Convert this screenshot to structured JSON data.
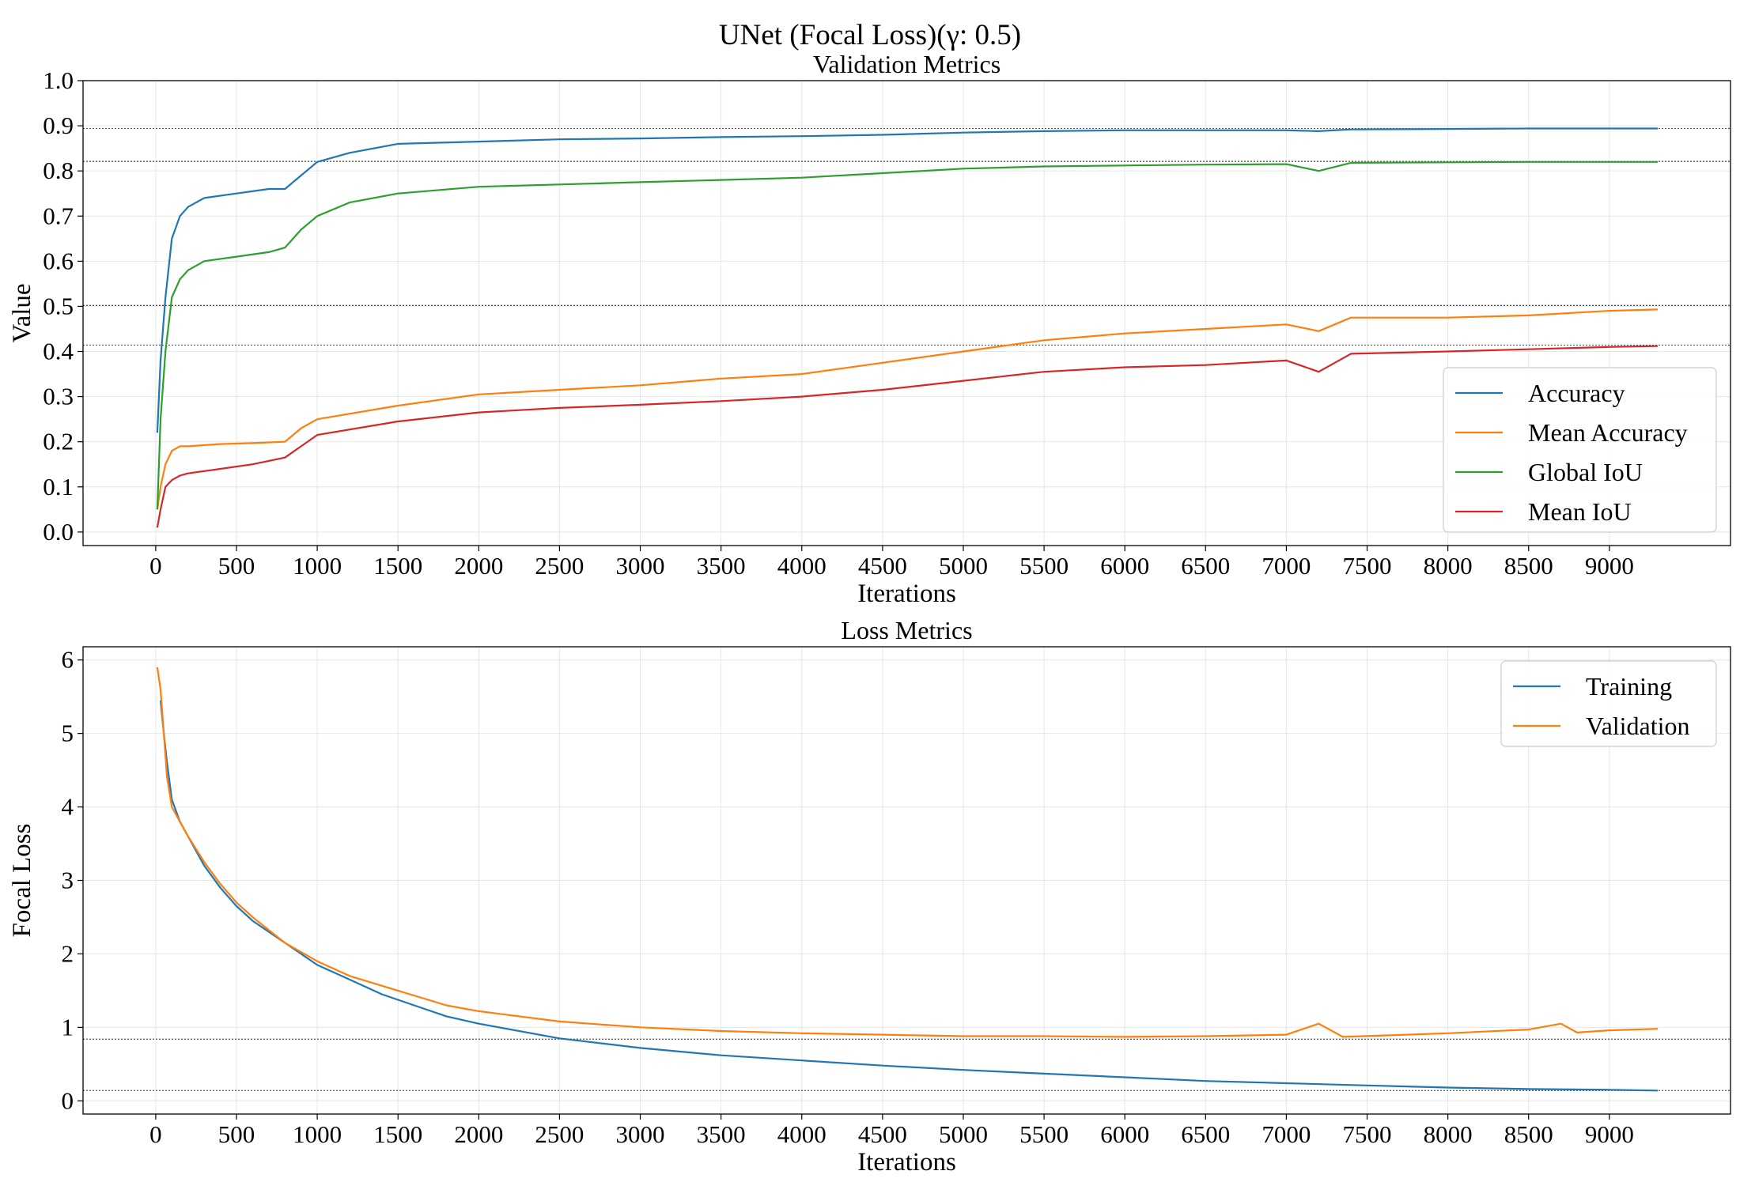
{
  "suptitle": "UNet (Focal Loss)(γ: 0.5)",
  "colors": {
    "blue": "#1f77b4",
    "orange": "#ff7f0e",
    "green": "#2ca02c",
    "red": "#d62728",
    "refline": "#555555"
  },
  "chart_data": [
    {
      "type": "line",
      "title": "Validation Metrics",
      "xlabel": "Iterations",
      "ylabel": "Value",
      "xlim": [
        -450,
        9750
      ],
      "ylim": [
        -0.03,
        1.0
      ],
      "xticks": [
        0,
        500,
        1000,
        1500,
        2000,
        2500,
        3000,
        3500,
        4000,
        4500,
        5000,
        5500,
        6000,
        6500,
        7000,
        7500,
        8000,
        8500,
        9000
      ],
      "yticks": [
        0.0,
        0.1,
        0.2,
        0.3,
        0.4,
        0.5,
        0.6,
        0.7,
        0.8,
        0.9,
        1.0
      ],
      "ytick_labels": [
        "0.0",
        "0.1",
        "0.2",
        "0.3",
        "0.4",
        "0.5",
        "0.6",
        "0.7",
        "0.8",
        "0.9",
        "1.0"
      ],
      "grid": true,
      "legend_position": "lower-right",
      "reference_lines": [
        0.894,
        0.821,
        0.502,
        0.414
      ],
      "series": [
        {
          "name": "Accuracy",
          "color": "#1f77b4",
          "x": [
            10,
            30,
            60,
            100,
            150,
            200,
            300,
            500,
            700,
            800,
            900,
            1000,
            1200,
            1500,
            2000,
            2500,
            3000,
            3500,
            4000,
            4500,
            5000,
            5500,
            6000,
            6500,
            7000,
            7200,
            7400,
            8000,
            8500,
            9000,
            9300
          ],
          "y": [
            0.22,
            0.38,
            0.52,
            0.65,
            0.7,
            0.72,
            0.74,
            0.75,
            0.76,
            0.76,
            0.79,
            0.82,
            0.84,
            0.86,
            0.865,
            0.87,
            0.872,
            0.875,
            0.877,
            0.88,
            0.885,
            0.888,
            0.89,
            0.89,
            0.89,
            0.888,
            0.892,
            0.893,
            0.894,
            0.894,
            0.894
          ]
        },
        {
          "name": "Mean Accuracy",
          "color": "#ff7f0e",
          "x": [
            10,
            30,
            60,
            100,
            150,
            200,
            400,
            600,
            800,
            900,
            1000,
            1500,
            2000,
            2500,
            3000,
            3500,
            4000,
            4500,
            5000,
            5500,
            6000,
            6500,
            7000,
            7200,
            7400,
            8000,
            8500,
            9000,
            9300
          ],
          "y": [
            0.05,
            0.1,
            0.15,
            0.18,
            0.19,
            0.19,
            0.195,
            0.197,
            0.2,
            0.23,
            0.25,
            0.28,
            0.305,
            0.315,
            0.325,
            0.34,
            0.35,
            0.375,
            0.4,
            0.425,
            0.44,
            0.45,
            0.46,
            0.445,
            0.475,
            0.475,
            0.48,
            0.49,
            0.493
          ]
        },
        {
          "name": "Global IoU",
          "color": "#2ca02c",
          "x": [
            10,
            30,
            60,
            100,
            150,
            200,
            300,
            500,
            700,
            800,
            900,
            1000,
            1200,
            1500,
            2000,
            2500,
            3000,
            3500,
            4000,
            4500,
            5000,
            5500,
            6000,
            6500,
            7000,
            7200,
            7400,
            8000,
            8500,
            9000,
            9300
          ],
          "y": [
            0.05,
            0.25,
            0.4,
            0.52,
            0.56,
            0.58,
            0.6,
            0.61,
            0.62,
            0.63,
            0.67,
            0.7,
            0.73,
            0.75,
            0.765,
            0.77,
            0.775,
            0.78,
            0.785,
            0.795,
            0.805,
            0.81,
            0.812,
            0.814,
            0.815,
            0.8,
            0.818,
            0.819,
            0.82,
            0.82,
            0.82
          ]
        },
        {
          "name": "Mean IoU",
          "color": "#d62728",
          "x": [
            10,
            30,
            60,
            100,
            150,
            200,
            400,
            600,
            800,
            900,
            1000,
            1500,
            2000,
            2500,
            3000,
            3500,
            4000,
            4500,
            5000,
            5500,
            6000,
            6500,
            7000,
            7200,
            7400,
            8000,
            8500,
            9000,
            9300
          ],
          "y": [
            0.01,
            0.05,
            0.1,
            0.115,
            0.125,
            0.13,
            0.14,
            0.15,
            0.165,
            0.19,
            0.215,
            0.245,
            0.265,
            0.275,
            0.282,
            0.29,
            0.3,
            0.315,
            0.335,
            0.355,
            0.365,
            0.37,
            0.38,
            0.355,
            0.395,
            0.4,
            0.405,
            0.41,
            0.412
          ]
        }
      ]
    },
    {
      "type": "line",
      "title": "Loss Metrics",
      "xlabel": "Iterations",
      "ylabel": "Focal Loss",
      "xlim": [
        -450,
        9750
      ],
      "ylim": [
        -0.18,
        6.18
      ],
      "xticks": [
        0,
        500,
        1000,
        1500,
        2000,
        2500,
        3000,
        3500,
        4000,
        4500,
        5000,
        5500,
        6000,
        6500,
        7000,
        7500,
        8000,
        8500,
        9000
      ],
      "yticks": [
        0,
        1,
        2,
        3,
        4,
        5,
        6
      ],
      "ytick_labels": [
        "0",
        "1",
        "2",
        "3",
        "4",
        "5",
        "6"
      ],
      "grid": true,
      "legend_position": "upper-right",
      "reference_lines": [
        0.84,
        0.14
      ],
      "series": [
        {
          "name": "Training",
          "color": "#1f77b4",
          "x": [
            30,
            50,
            70,
            100,
            150,
            200,
            300,
            400,
            500,
            600,
            700,
            800,
            900,
            1000,
            1200,
            1400,
            1600,
            1800,
            2000,
            2500,
            3000,
            3500,
            4000,
            4500,
            5000,
            5500,
            6000,
            6500,
            7000,
            7500,
            8000,
            8500,
            9000,
            9300
          ],
          "y": [
            5.45,
            5.0,
            4.6,
            4.1,
            3.8,
            3.6,
            3.2,
            2.9,
            2.65,
            2.45,
            2.3,
            2.15,
            2.0,
            1.85,
            1.65,
            1.45,
            1.3,
            1.15,
            1.05,
            0.85,
            0.72,
            0.62,
            0.55,
            0.48,
            0.42,
            0.37,
            0.32,
            0.27,
            0.24,
            0.21,
            0.18,
            0.16,
            0.15,
            0.14
          ]
        },
        {
          "name": "Validation",
          "color": "#ff7f0e",
          "x": [
            10,
            30,
            50,
            70,
            100,
            150,
            200,
            300,
            400,
            500,
            600,
            800,
            1000,
            1200,
            1500,
            1800,
            2000,
            2500,
            3000,
            3500,
            4000,
            4500,
            5000,
            5500,
            6000,
            6500,
            7000,
            7200,
            7350,
            8000,
            8500,
            8700,
            8800,
            9000,
            9300
          ],
          "y": [
            5.9,
            5.6,
            5.0,
            4.4,
            4.0,
            3.8,
            3.6,
            3.25,
            2.95,
            2.7,
            2.5,
            2.15,
            1.9,
            1.7,
            1.5,
            1.3,
            1.22,
            1.08,
            1.0,
            0.95,
            0.92,
            0.9,
            0.88,
            0.88,
            0.87,
            0.88,
            0.9,
            1.05,
            0.87,
            0.92,
            0.97,
            1.05,
            0.93,
            0.96,
            0.98
          ]
        }
      ]
    }
  ]
}
